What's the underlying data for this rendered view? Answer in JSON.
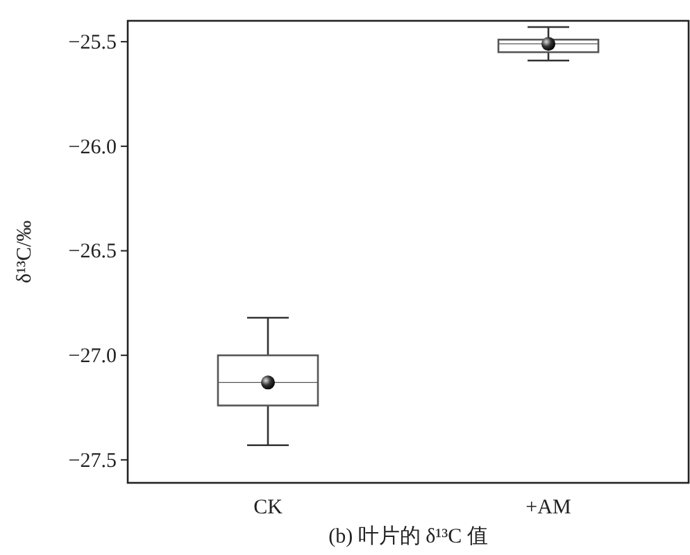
{
  "chart_data": {
    "type": "box",
    "xlabel": "(b) 叶片的 δ¹³C 值",
    "ylabel": "δ¹³C/‰",
    "categories": [
      "CK",
      "+AM"
    ],
    "boxes": [
      {
        "low": -27.43,
        "q1": -27.24,
        "median": -27.13,
        "q3": -27.0,
        "high": -26.82,
        "mean": -27.13
      },
      {
        "low": -25.59,
        "q1": -25.55,
        "median": -25.51,
        "q3": -25.49,
        "high": -25.43,
        "mean": -25.51
      }
    ],
    "color": "#555555",
    "ylim": [
      -27.61,
      -25.4
    ],
    "yticks": [
      {
        "value": -27.5,
        "label": "−27.5"
      },
      {
        "value": -27.0,
        "label": "−27.0"
      },
      {
        "value": -26.5,
        "label": "−26.5"
      },
      {
        "value": -26.0,
        "label": "−26.0"
      },
      {
        "value": -25.5,
        "label": "−25.5"
      }
    ],
    "grid": false
  }
}
